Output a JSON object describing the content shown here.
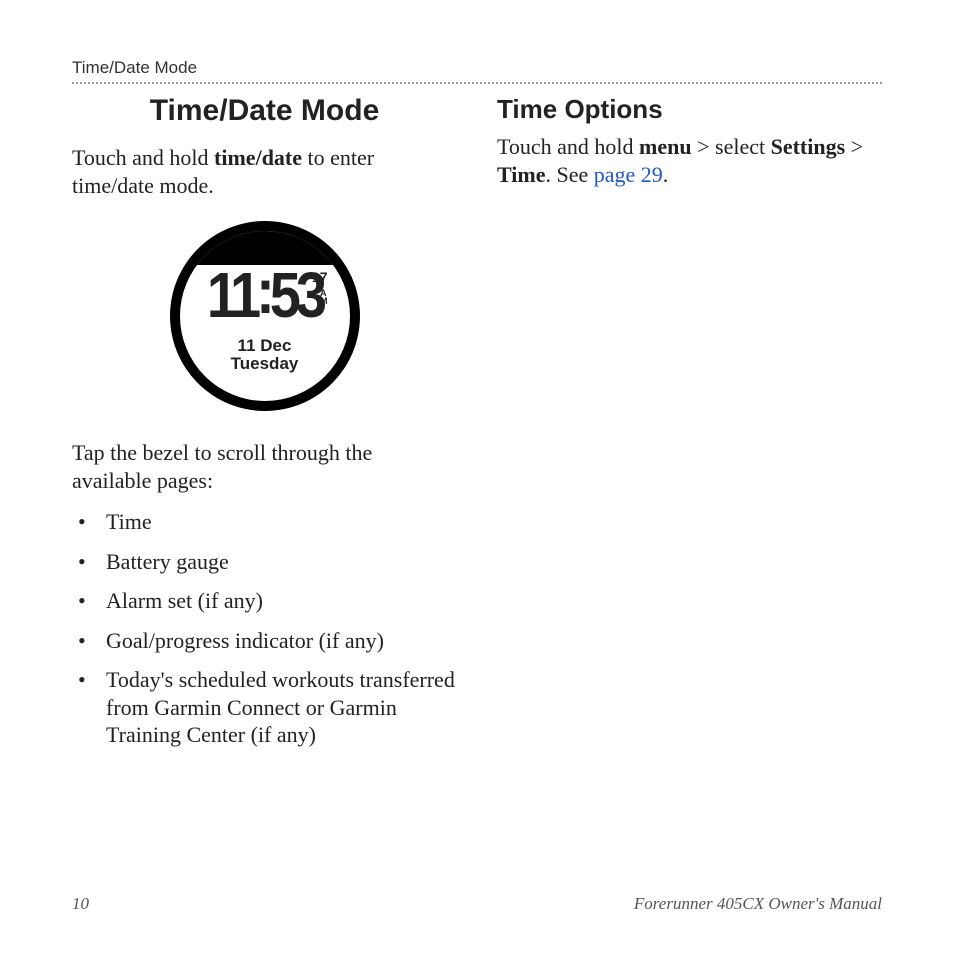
{
  "header": {
    "running": "Time/Date Mode"
  },
  "left": {
    "title": "Time/Date Mode",
    "intro_pre": "Touch and hold ",
    "intro_bold": "time/date",
    "intro_post": " to enter time/date mode.",
    "watch": {
      "hours": "11",
      "minutes": "53",
      "seconds": "17",
      "ampm1": "A",
      "ampm2": "M",
      "date": "11 Dec",
      "day": "Tuesday"
    },
    "tap": "Tap the bezel to scroll through the available pages:",
    "bullets": [
      "Time",
      "Battery gauge",
      "Alarm set (if any)",
      "Goal/progress indicator (if any)",
      "Today's scheduled workouts transferred from Garmin Connect or Garmin Training Center (if any)"
    ]
  },
  "right": {
    "title": "Time Options",
    "p1_a": "Touch and hold ",
    "p1_menu": "menu",
    "p1_b": " > select ",
    "p1_settings": "Settings",
    "p1_c": " > ",
    "p1_time": "Time",
    "p1_d": ". See ",
    "p1_link": "page 29",
    "p1_e": "."
  },
  "footer": {
    "page": "10",
    "manual": "Forerunner 405CX Owner's Manual"
  }
}
